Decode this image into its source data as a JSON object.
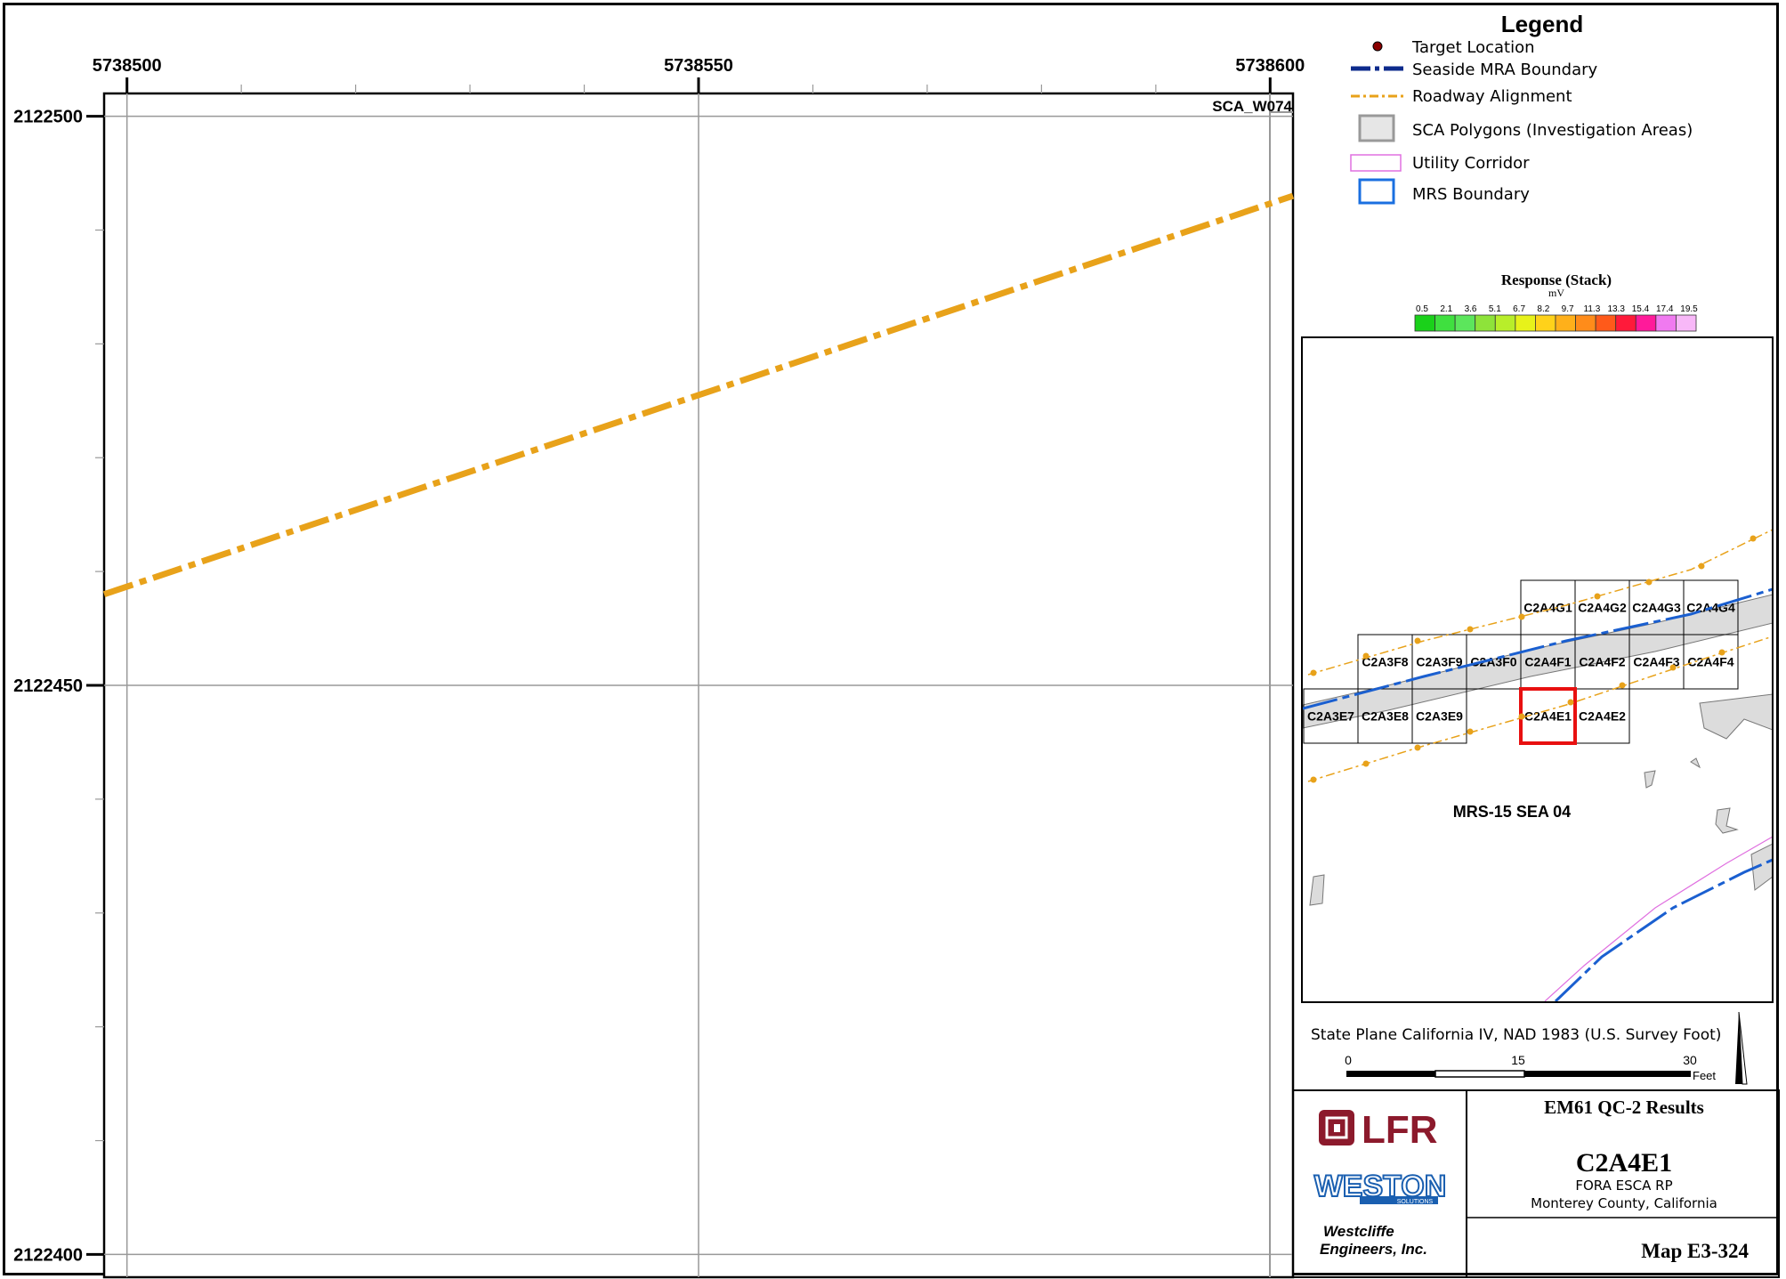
{
  "map": {
    "x_ticks": [
      {
        "value": 5738500,
        "label": "5738500"
      },
      {
        "value": 5738550,
        "label": "5738550"
      },
      {
        "value": 5738600,
        "label": "5738600"
      }
    ],
    "y_ticks": [
      {
        "value": 2122500,
        "label": "2122500"
      },
      {
        "value": 2122450,
        "label": "2122450"
      },
      {
        "value": 2122400,
        "label": "2122400"
      }
    ],
    "x_range": [
      5738498,
      5738602
    ],
    "y_range": [
      2122398,
      2122502
    ],
    "sca_label": "SCA_W074",
    "roadway_color": "#e8a21a",
    "roadway_line": [
      [
        5738498,
        2122458
      ],
      [
        5738602,
        2122493
      ]
    ]
  },
  "legend": {
    "title": "Legend",
    "items": [
      {
        "label": "Target Location",
        "icon": "target-dot-icon"
      },
      {
        "label": "Seaside MRA Boundary",
        "icon": "dash-dot-blue-line-icon"
      },
      {
        "label": "Roadway Alignment",
        "icon": "dash-dot-orange-line-icon"
      },
      {
        "label": "SCA Polygons (Investigation Areas)",
        "icon": "gray-box-icon"
      },
      {
        "label": "Utility Corridor",
        "icon": "pink-box-icon"
      },
      {
        "label": "MRS Boundary",
        "icon": "blue-box-icon"
      }
    ]
  },
  "colorbar": {
    "title": "Response (Stack)",
    "unit": "mV",
    "ticks": [
      "0.5",
      "2.1",
      "3.6",
      "5.1",
      "6.7",
      "8.2",
      "9.7",
      "11.3",
      "13.3",
      "15.4",
      "17.4",
      "19.5"
    ],
    "colors": [
      "#1ad11a",
      "#3fe03f",
      "#5ce65c",
      "#8ee33a",
      "#b8ee2a",
      "#e7f21a",
      "#ffd21a",
      "#ffb01a",
      "#ff8c1a",
      "#ff5a1a",
      "#ff1a3a",
      "#ff1a9a",
      "#f07af0",
      "#f8b8f8"
    ]
  },
  "inset": {
    "grid_cells": [
      {
        "label": "C2A4G1",
        "row": 0,
        "col": 4
      },
      {
        "label": "C2A4G2",
        "row": 0,
        "col": 5
      },
      {
        "label": "C2A4G3",
        "row": 0,
        "col": 6
      },
      {
        "label": "C2A4G4",
        "row": 0,
        "col": 7
      },
      {
        "label": "C2A3F8",
        "row": 1,
        "col": 1
      },
      {
        "label": "C2A3F9",
        "row": 1,
        "col": 2
      },
      {
        "label": "C2A3F0",
        "row": 1,
        "col": 3
      },
      {
        "label": "C2A4F1",
        "row": 1,
        "col": 4
      },
      {
        "label": "C2A4F2",
        "row": 1,
        "col": 5
      },
      {
        "label": "C2A4F3",
        "row": 1,
        "col": 6
      },
      {
        "label": "C2A4F4",
        "row": 1,
        "col": 7
      },
      {
        "label": "C2A3E7",
        "row": 2,
        "col": 0
      },
      {
        "label": "C2A3E8",
        "row": 2,
        "col": 1
      },
      {
        "label": "C2A3E9",
        "row": 2,
        "col": 2
      },
      {
        "label": "C2A4E1",
        "row": 2,
        "col": 4,
        "highlight": true
      },
      {
        "label": "C2A4E2",
        "row": 2,
        "col": 5
      }
    ],
    "area_label": "MRS-15 SEA 04",
    "highlight_color": "#e81010"
  },
  "projection": "State Plane California IV, NAD 1983 (U.S. Survey Foot)",
  "scale_bar": {
    "ticks": [
      "0",
      "15",
      "30"
    ],
    "unit": "Feet"
  },
  "title_block": {
    "lfr_logo": "LFR",
    "weston_logo": "WESTON",
    "weston_sub": "SOLUTIONS",
    "company_line1": "Westcliffe",
    "company_line2": "Engineers, Inc.",
    "heading": "EM61 QC-2 Results",
    "grid_id": "C2A4E1",
    "project": "FORA ESCA RP",
    "location": "Monterey County, California",
    "map_number": "Map E3-324"
  }
}
